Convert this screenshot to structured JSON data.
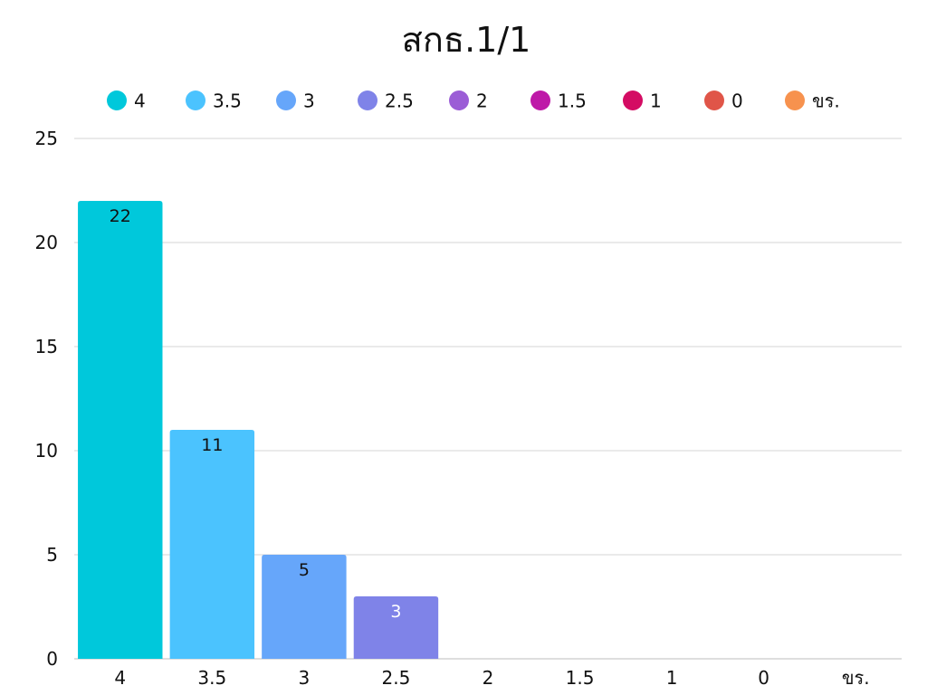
{
  "chart_data": {
    "type": "bar",
    "title": "สกธ.1/1",
    "xlabel": "",
    "ylabel": "",
    "categories": [
      "4",
      "3.5",
      "3",
      "2.5",
      "2",
      "1.5",
      "1",
      "0",
      "ขร."
    ],
    "series": [
      {
        "name": "4",
        "values": [
          22,
          null,
          null,
          null,
          null,
          null,
          null,
          null,
          null
        ],
        "color": "#00c8db"
      },
      {
        "name": "3.5",
        "values": [
          null,
          11,
          null,
          null,
          null,
          null,
          null,
          null,
          null
        ],
        "color": "#4bc3fe"
      },
      {
        "name": "3",
        "values": [
          null,
          null,
          5,
          null,
          null,
          null,
          null,
          null,
          null
        ],
        "color": "#66a6fa"
      },
      {
        "name": "2.5",
        "values": [
          null,
          null,
          null,
          3,
          null,
          null,
          null,
          null,
          null
        ],
        "color": "#7f83e8"
      },
      {
        "name": "2",
        "values": [
          null,
          null,
          null,
          null,
          0,
          null,
          null,
          null,
          null
        ],
        "color": "#9b5dd6"
      },
      {
        "name": "1.5",
        "values": [
          null,
          null,
          null,
          null,
          null,
          0,
          null,
          null,
          null
        ],
        "color": "#be19a8"
      },
      {
        "name": "1",
        "values": [
          null,
          null,
          null,
          null,
          null,
          null,
          0,
          null,
          null
        ],
        "color": "#d40c63"
      },
      {
        "name": "0",
        "values": [
          null,
          null,
          null,
          null,
          null,
          null,
          null,
          0,
          null
        ],
        "color": "#e05548"
      },
      {
        "name": "ขร.",
        "values": [
          null,
          null,
          null,
          null,
          null,
          null,
          null,
          null,
          0
        ],
        "color": "#f7924e"
      }
    ],
    "values": [
      22,
      11,
      5,
      3,
      0,
      0,
      0,
      0,
      0
    ],
    "data_labels": [
      "22",
      "11",
      "5",
      "3",
      "",
      "",
      "",
      "",
      ""
    ],
    "data_label_colors": [
      "#111111",
      "#111111",
      "#111111",
      "#ffffff",
      "#111111",
      "#111111",
      "#111111",
      "#111111",
      "#111111"
    ],
    "ylim": [
      0,
      25
    ],
    "yticks": [
      0,
      5,
      10,
      15,
      20,
      25
    ],
    "grid": true,
    "legend": "top"
  }
}
